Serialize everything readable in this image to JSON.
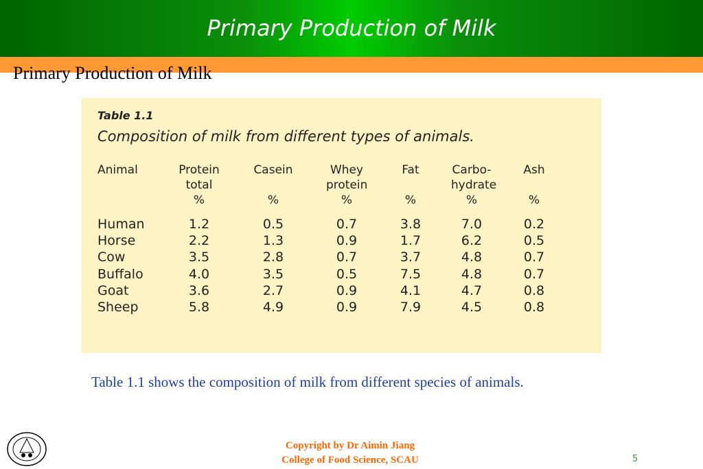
{
  "header": {
    "title": "Primary Production of Milk"
  },
  "subtitle": "Primary Production of Milk",
  "table": {
    "number": "Table 1.1",
    "caption": "Composition of milk from different types of animals.",
    "columns": [
      {
        "label": "Animal",
        "unit": ""
      },
      {
        "label": "Protein total",
        "unit": "%"
      },
      {
        "label": "Casein",
        "unit": "%"
      },
      {
        "label": "Whey protein",
        "unit": "%"
      },
      {
        "label": "Fat",
        "unit": "%"
      },
      {
        "label": "Carbo- hydrate",
        "unit": "%"
      },
      {
        "label": "Ash",
        "unit": "%"
      }
    ],
    "rows": [
      [
        "Human",
        "1.2",
        "0.5",
        "0.7",
        "3.8",
        "7.0",
        "0.2"
      ],
      [
        "Horse",
        "2.2",
        "1.3",
        "0.9",
        "1.7",
        "6.2",
        "0.5"
      ],
      [
        "Cow",
        "3.5",
        "2.8",
        "0.7",
        "3.7",
        "4.8",
        "0.7"
      ],
      [
        "Buffalo",
        "4.0",
        "3.5",
        "0.5",
        "7.5",
        "4.8",
        "0.7"
      ],
      [
        "Goat",
        "3.6",
        "2.7",
        "0.9",
        "4.1",
        "4.7",
        "0.8"
      ],
      [
        "Sheep",
        "5.8",
        "4.9",
        "0.9",
        "7.9",
        "4.5",
        "0.8"
      ]
    ]
  },
  "description": "Table 1.1 shows the composition of milk from different species of animals.",
  "footer": {
    "copyright": "Copyright by Dr Aimin Jiang",
    "college": "College of Food Science, SCAU",
    "page": "5"
  },
  "colors": {
    "header_green": "#00cc00",
    "band_orange": "#ff9933",
    "table_bg": "#fdf3c4",
    "desc_blue": "#1f3f9f",
    "copyright_orange": "#ff6600"
  }
}
